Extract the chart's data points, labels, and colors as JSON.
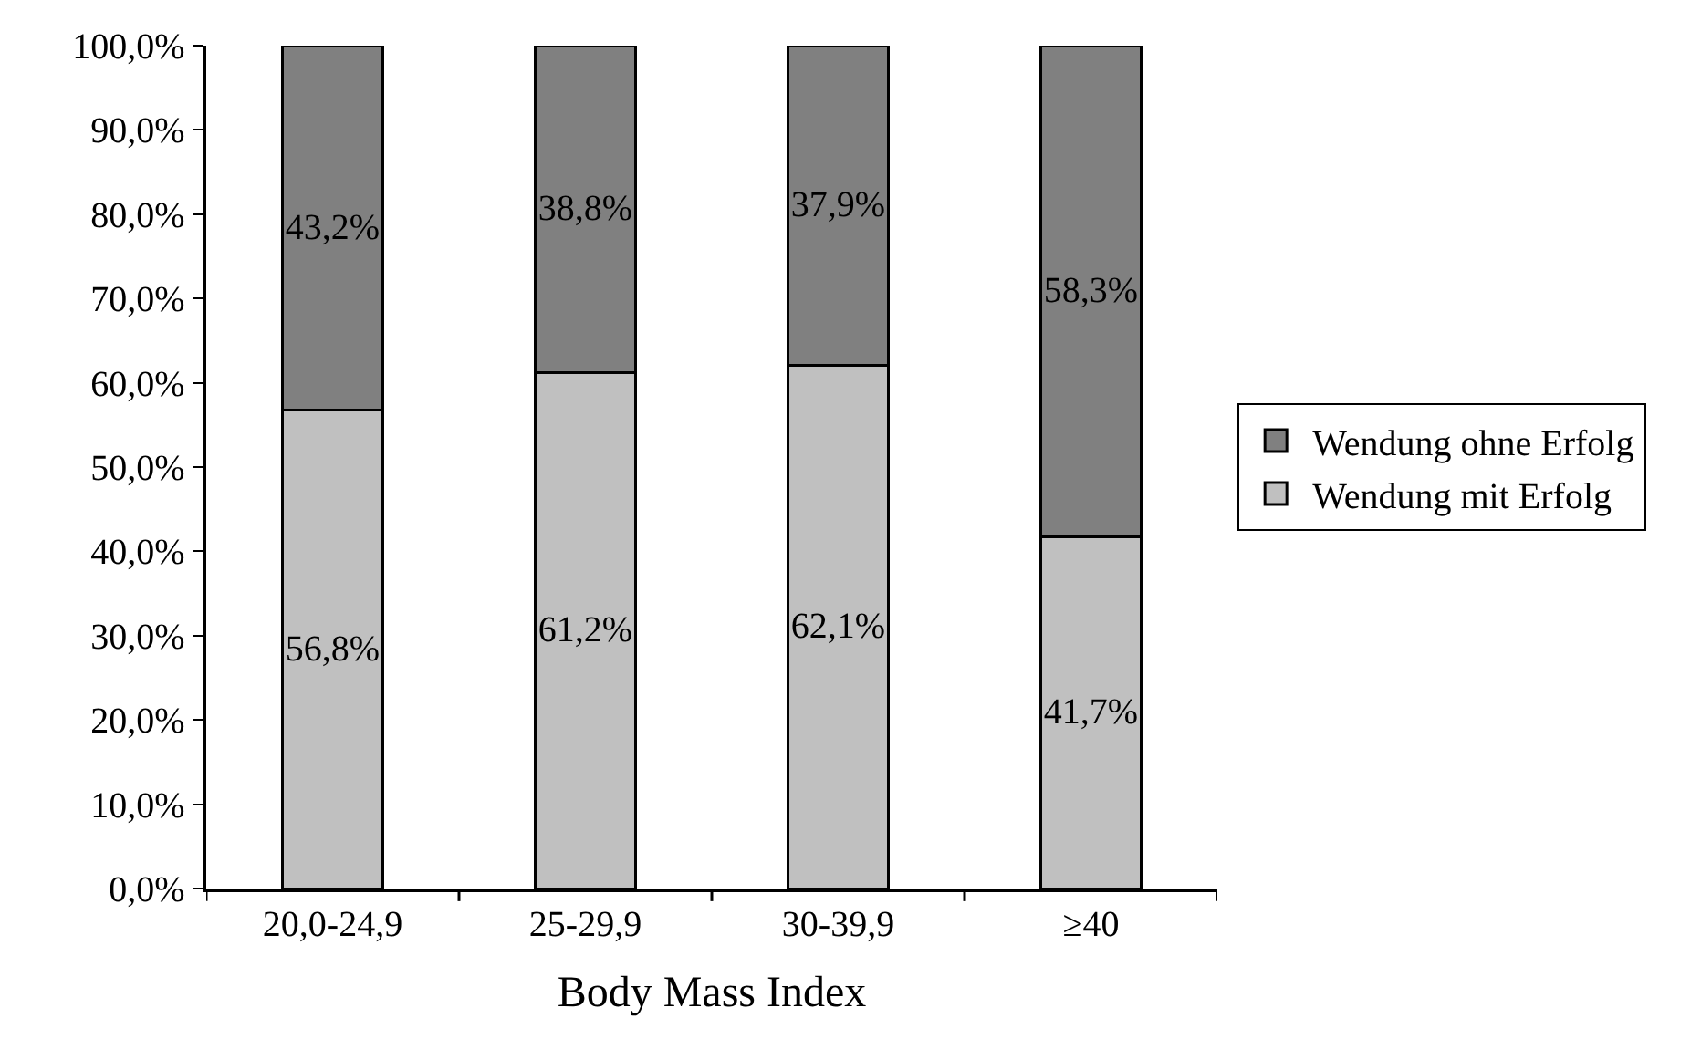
{
  "chart_data": {
    "type": "bar",
    "stacked": true,
    "xlabel": "Body Mass Index",
    "categories": [
      "20,0-24,9",
      "25-29,9",
      "30-39,9",
      "≥40"
    ],
    "series": [
      {
        "name": "Wendung mit Erfolg",
        "color": "#c0c0c0",
        "values": [
          56.8,
          61.2,
          62.1,
          41.7
        ],
        "value_labels": [
          "56,8%",
          "61,2%",
          "62,1%",
          "41,7%"
        ]
      },
      {
        "name": "Wendung ohne Erfolg",
        "color": "#808080",
        "values": [
          43.2,
          38.8,
          37.9,
          58.3
        ],
        "value_labels": [
          "43,2%",
          "38,8%",
          "37,9%",
          "58,3%"
        ]
      }
    ],
    "ylim": [
      0,
      100
    ],
    "yticks": [
      {
        "value": 0,
        "label": "0,0%"
      },
      {
        "value": 10,
        "label": "10,0%"
      },
      {
        "value": 20,
        "label": "20,0%"
      },
      {
        "value": 30,
        "label": "30,0%"
      },
      {
        "value": 40,
        "label": "40,0%"
      },
      {
        "value": 50,
        "label": "50,0%"
      },
      {
        "value": 60,
        "label": "60,0%"
      },
      {
        "value": 70,
        "label": "70,0%"
      },
      {
        "value": 80,
        "label": "80,0%"
      },
      {
        "value": 90,
        "label": "90,0%"
      },
      {
        "value": 100,
        "label": "100,0%"
      }
    ],
    "grid": false,
    "legend": "right"
  }
}
